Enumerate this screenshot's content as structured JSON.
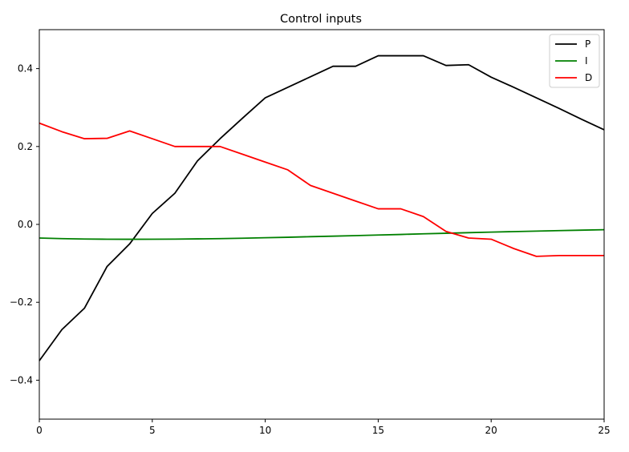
{
  "chart_data": {
    "type": "line",
    "title": "Control inputs",
    "xlabel": "",
    "ylabel": "",
    "xlim": [
      0,
      25
    ],
    "ylim": [
      -0.5,
      0.5
    ],
    "xticks": [
      0,
      5,
      10,
      15,
      20,
      25
    ],
    "yticks": [
      -0.4,
      -0.2,
      0.0,
      0.2,
      0.4
    ],
    "xtick_labels": [
      "0",
      "5",
      "10",
      "15",
      "20",
      "25"
    ],
    "ytick_labels": [
      "−0.4",
      "−0.2",
      "0.0",
      "0.2",
      "0.4"
    ],
    "grid": false,
    "legend": {
      "placement": "top-right"
    },
    "x": [
      0,
      1,
      2,
      3,
      4,
      5,
      6,
      7,
      8,
      9,
      10,
      11,
      12,
      13,
      14,
      15,
      16,
      17,
      18,
      19,
      20,
      21,
      22,
      23,
      24,
      25
    ],
    "series": [
      {
        "name": "P",
        "color": "#000000",
        "values": [
          -0.35,
          -0.27,
          -0.215,
          -0.108,
          -0.05,
          0.028,
          0.08,
          0.163,
          0.22,
          0.273,
          0.325,
          0.352,
          0.379,
          0.406,
          0.406,
          0.433,
          0.433,
          0.433,
          0.408,
          0.41,
          0.378,
          0.352,
          0.325,
          0.298,
          0.27,
          0.243
        ]
      },
      {
        "name": "I",
        "color": "#008000",
        "values": [
          -0.035,
          -0.0365,
          -0.0375,
          -0.038,
          -0.0382,
          -0.038,
          -0.0378,
          -0.0372,
          -0.0365,
          -0.0355,
          -0.0342,
          -0.033,
          -0.0315,
          -0.0302,
          -0.0288,
          -0.0272,
          -0.0258,
          -0.0242,
          -0.0228,
          -0.0212,
          -0.0198,
          -0.0185,
          -0.0172,
          -0.016,
          -0.0148,
          -0.0136
        ]
      },
      {
        "name": "D",
        "color": "#ff0000",
        "values": [
          0.26,
          0.238,
          0.22,
          0.221,
          0.24,
          0.22,
          0.2,
          0.2,
          0.2,
          0.18,
          0.16,
          0.14,
          0.1,
          0.08,
          0.06,
          0.04,
          0.04,
          0.02,
          -0.018,
          -0.035,
          -0.038,
          -0.062,
          -0.082,
          -0.08,
          -0.08,
          -0.08
        ]
      }
    ]
  }
}
